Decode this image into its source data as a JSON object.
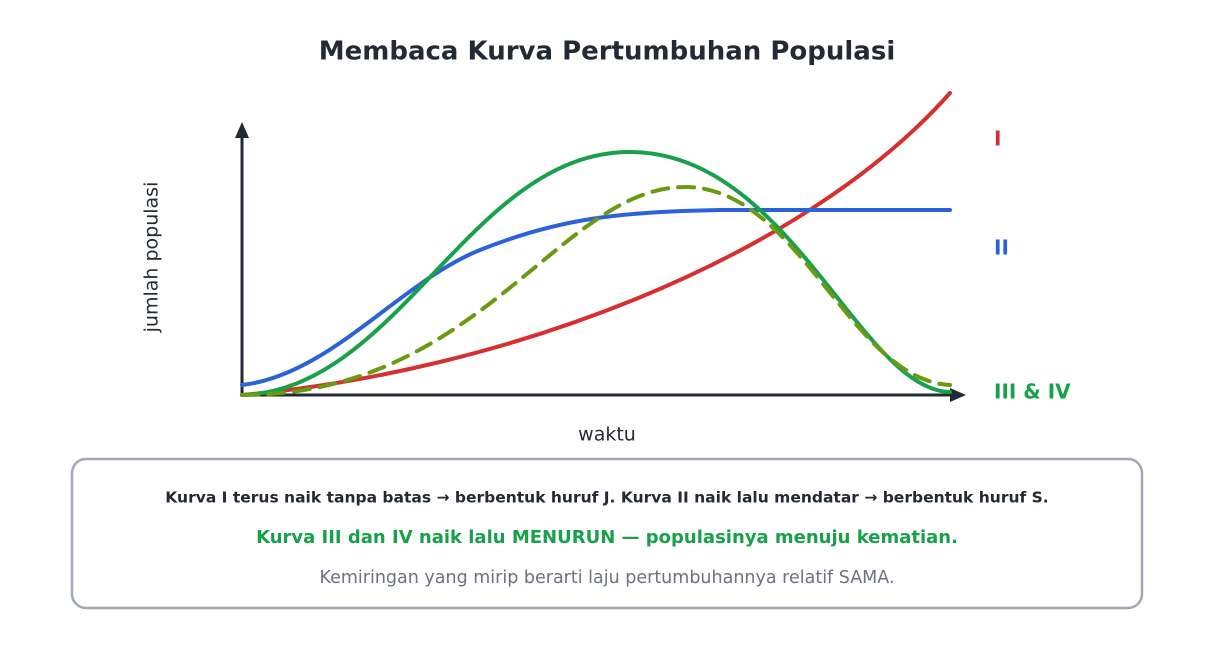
{
  "title": "Membaca Kurva Pertumbuhan Populasi",
  "axes": {
    "y_label": "jumlah populasi",
    "x_label": "waktu"
  },
  "curves": {
    "labels": [
      "I",
      "II",
      "III & IV"
    ]
  },
  "notes": [
    "Kurva I terus naik tanpa batas → berbentuk huruf J. Kurva II naik lalu mendatar → berbentuk huruf S.",
    "Kurva III dan IV naik lalu MENURUN — populasinya menuju kematian.",
    "Kemiringan yang mirip berarti laju pertumbuhannya relatif SAMA."
  ]
}
